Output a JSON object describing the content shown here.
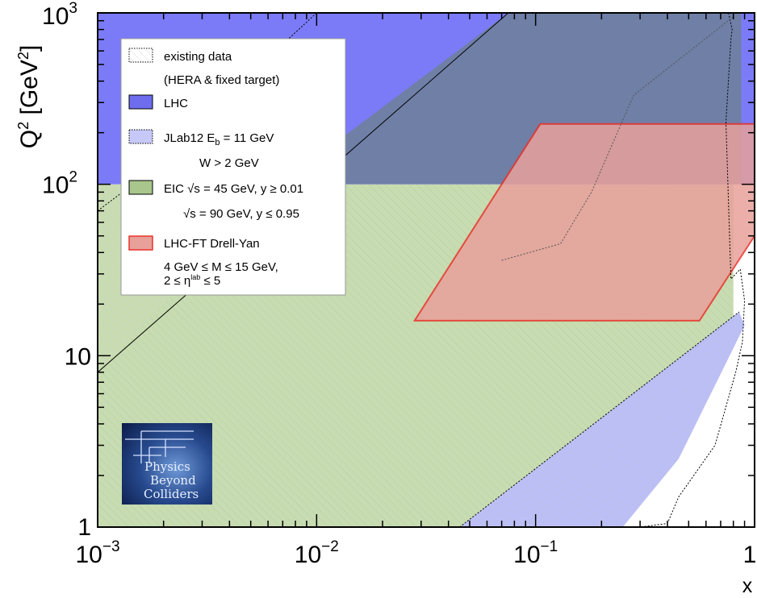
{
  "chart_data": {
    "type": "area",
    "title": "",
    "xlabel": "x",
    "ylabel": "Q² [GeV²]",
    "x_scale": "log",
    "y_scale": "log",
    "xlim": [
      0.001,
      1
    ],
    "ylim": [
      1,
      1000
    ],
    "x_ticks": [
      {
        "value": 0.001,
        "base": "10",
        "exp": "−3"
      },
      {
        "value": 0.01,
        "base": "10",
        "exp": "−2"
      },
      {
        "value": 0.1,
        "base": "10",
        "exp": "−1"
      },
      {
        "value": 1,
        "base": "1",
        "exp": ""
      }
    ],
    "y_ticks": [
      {
        "value": 1,
        "base": "1",
        "exp": ""
      },
      {
        "value": 10,
        "base": "10",
        "exp": ""
      },
      {
        "value": 100,
        "base": "10",
        "exp": "2"
      },
      {
        "value": 1000,
        "base": "10",
        "exp": "3"
      }
    ],
    "series": [
      {
        "name": "existing data (HERA & fixed target)",
        "style": "dotted-outline-hatched",
        "x": [
          0.001,
          0.0013,
          0.01,
          0.045,
          0.07,
          0.19,
          0.76,
          0.79,
          0.78,
          0.74,
          0.78,
          0.86,
          0.9,
          0.88,
          0.82,
          0.66,
          0.45,
          0.4,
          0.3,
          0.34,
          0.34,
          0.001
        ],
        "y": [
          1000,
          1000,
          1000,
          1000,
          1000,
          1000,
          1000,
          800,
          700,
          230,
          28,
          32,
          21,
          12,
          8,
          3,
          1.5,
          1.05,
          1,
          1,
          1,
          1
        ]
      },
      {
        "name": "LHC",
        "color": "#7b7bf8",
        "y_min": 100,
        "y_max": 1000,
        "x_min": 0.001,
        "x_max": 0.8
      },
      {
        "name": "JLab12  E_b = 11 GeV, W > 2 GeV",
        "color": "#b8bcf6",
        "x": [
          0.045,
          0.85,
          0.9,
          0.45,
          0.25
        ],
        "y": [
          1,
          18,
          15,
          2.5,
          1
        ]
      },
      {
        "name": "EIC √s = 45 GeV, y ≥ 0.01 / √s = 90 GeV, y ≤ 0.95",
        "color": "#c7dcb0",
        "x": [
          0.001,
          0.001,
          0.8,
          0.8,
          0.045
        ],
        "y": [
          1,
          100,
          100,
          16,
          1
        ]
      },
      {
        "name": "LHC-FT Drell-Yan 4 GeV ≤ M ≤ 15 GeV, 2 ≤ η^lab ≤ 5",
        "color": "#e8a09b",
        "edge": "#e8322a",
        "x": [
          0.028,
          0.105,
          1.0,
          1.0,
          0.56
        ],
        "y": [
          16,
          225,
          225,
          50,
          16
        ]
      },
      {
        "name": "",
        "style": "kinematic-limit-line",
        "x": [
          0.001,
          0.075
        ],
        "y": [
          8,
          1000
        ]
      }
    ],
    "legend": {
      "position": "top-left",
      "entries": [
        {
          "key": "data",
          "swatch": "#ffffff",
          "swatch_style": "dotted",
          "lines": [
            "existing data",
            "(HERA & fixed target)"
          ]
        },
        {
          "key": "lhc",
          "swatch": "#6d6dee",
          "swatch_style": "solid",
          "lines": [
            "LHC"
          ]
        },
        {
          "key": "jlab",
          "swatch": "#c6c9f8",
          "swatch_style": "dotted",
          "lines": [
            "JLab12  E",
            "b",
            " = 11 GeV",
            "W > 2 GeV"
          ]
        },
        {
          "key": "eic",
          "swatch": "#a9c68c",
          "swatch_style": "solid",
          "lines": [
            "EIC √s = 45 GeV, y ≥ 0.01",
            "√s = 90 GeV, y ≤ 0.95"
          ]
        },
        {
          "key": "dy",
          "swatch": "#e8a09b",
          "swatch_style": "red",
          "lines": [
            "LHC-FT Drell-Yan",
            "4 GeV ≤ M ≤ 15 GeV,",
            "2 ≤ η",
            "lab",
            " ≤ 5"
          ]
        }
      ]
    },
    "logo": {
      "lines": [
        "Physics",
        "Beyond",
        "Colliders"
      ]
    }
  }
}
